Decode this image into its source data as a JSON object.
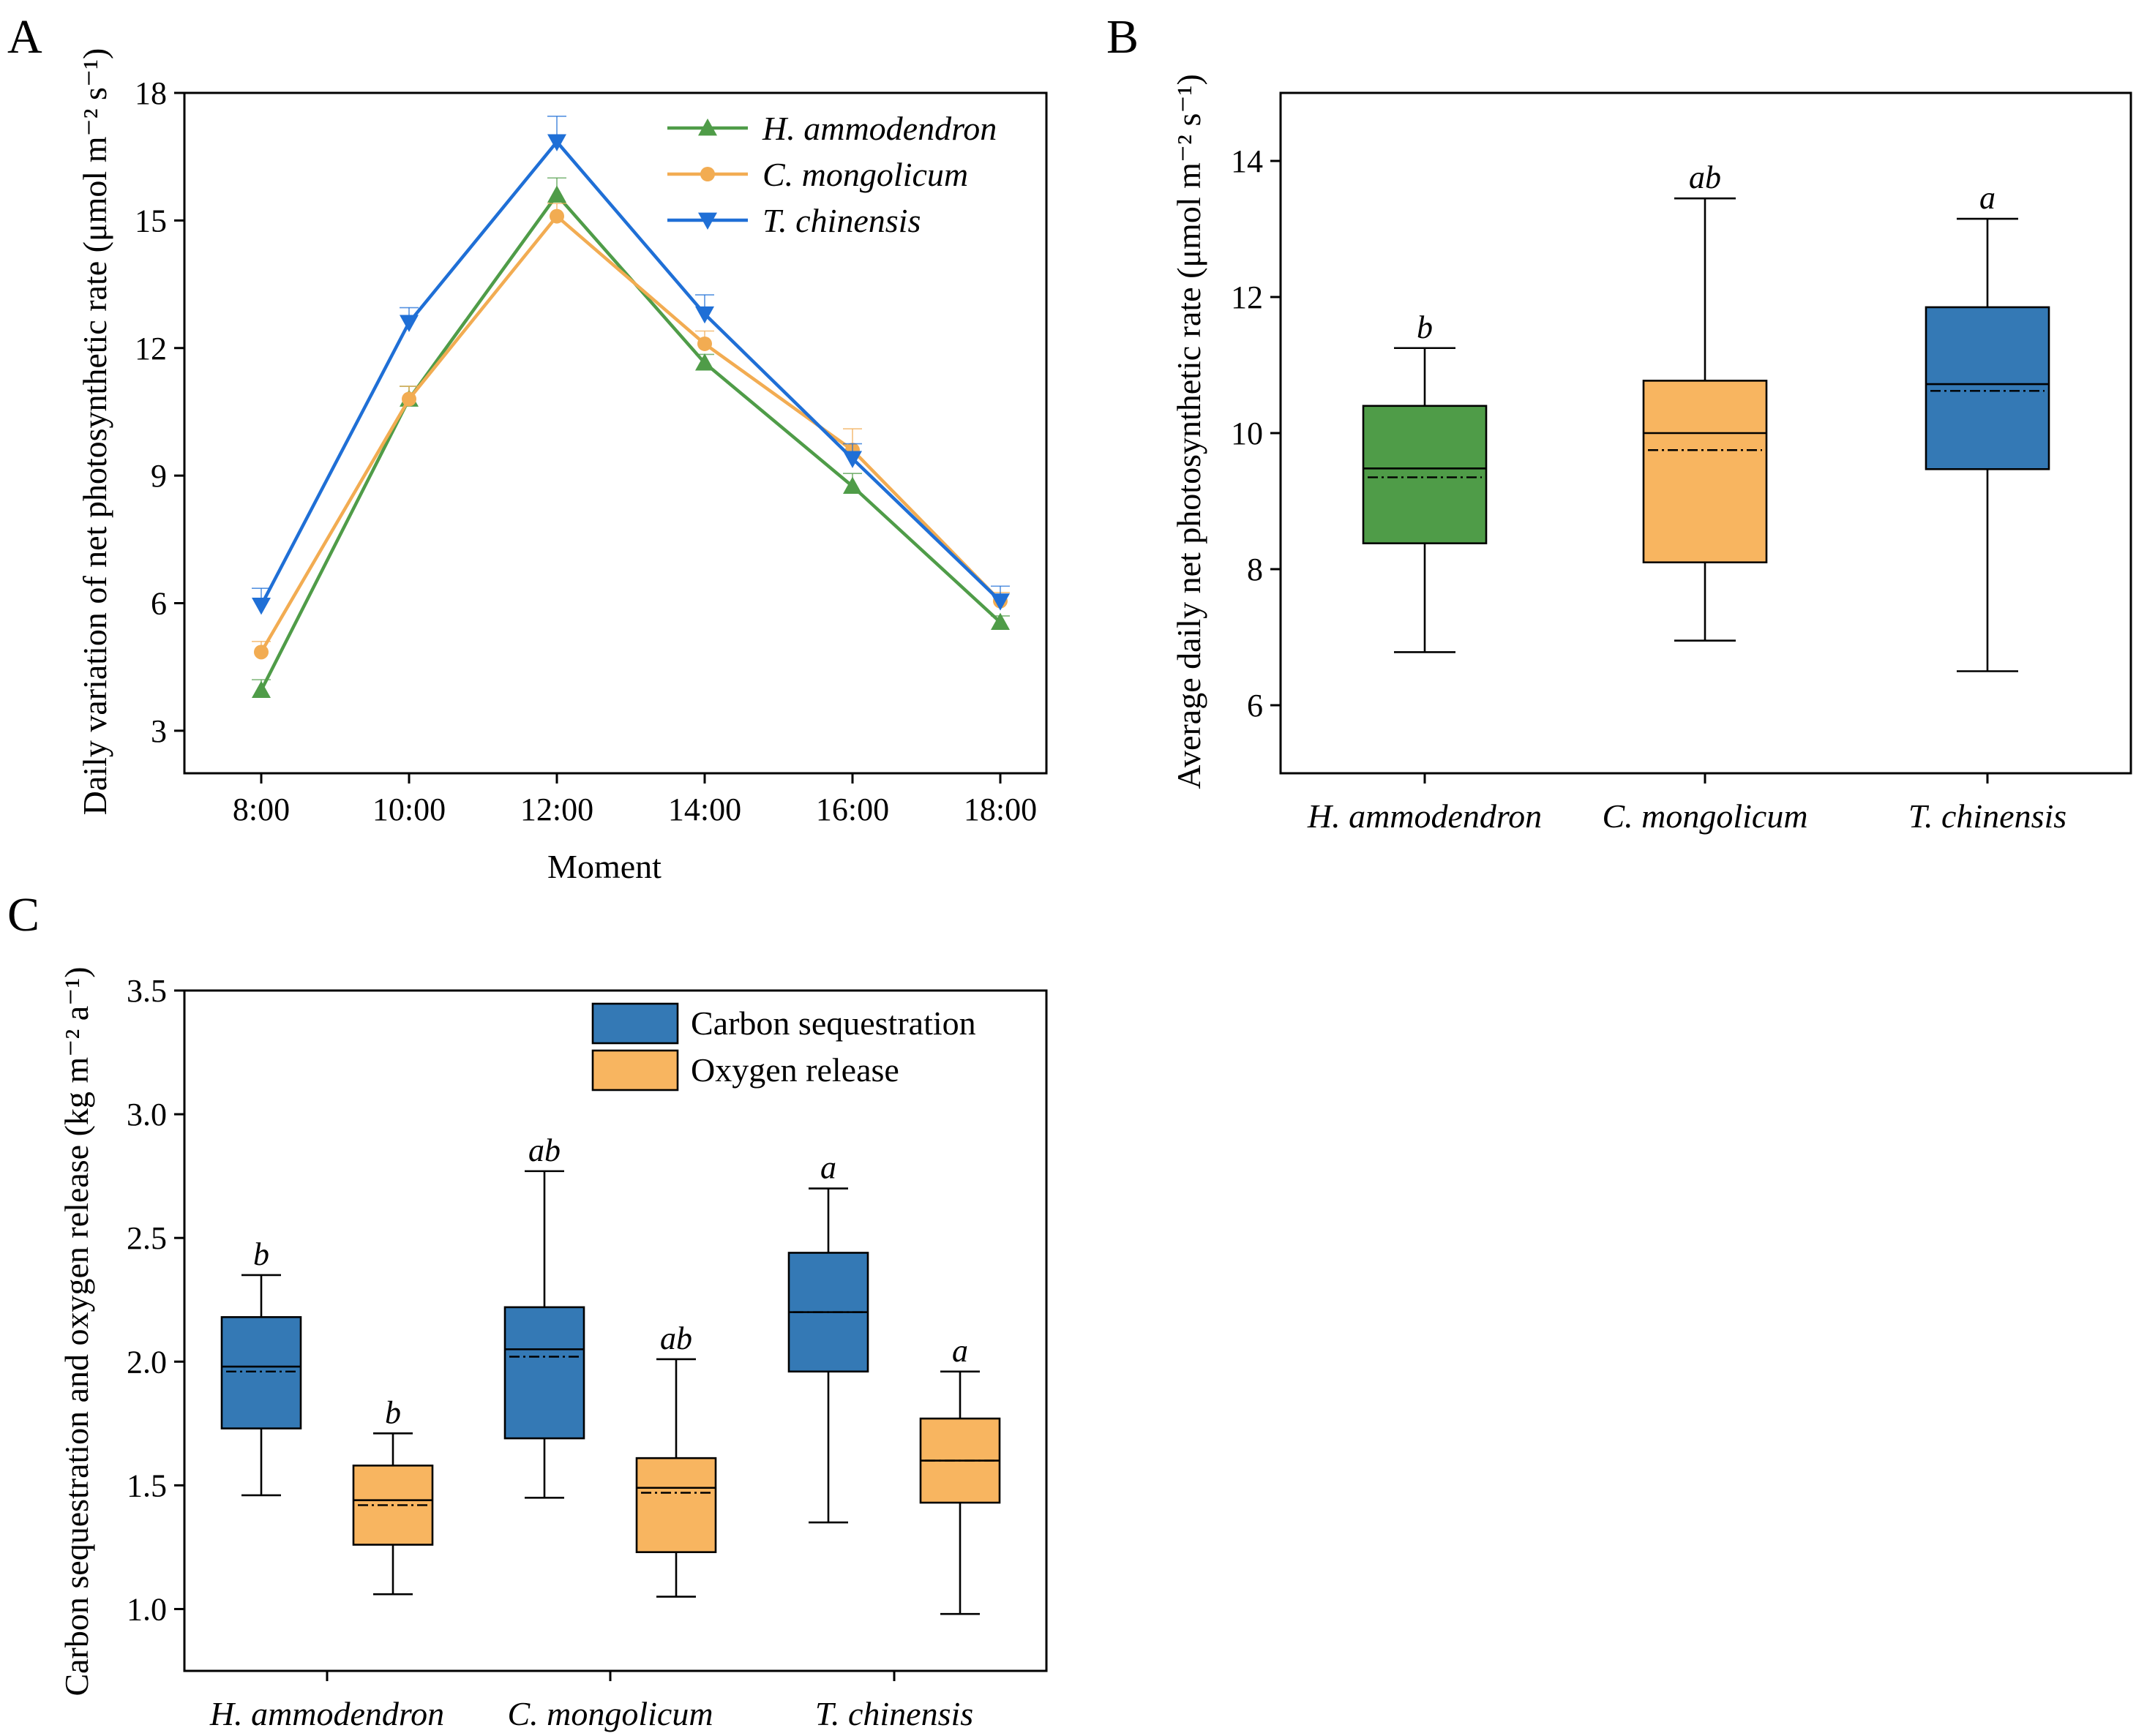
{
  "colors": {
    "green": "#4f9c48",
    "orange": "#f8b560",
    "blue": "#3479b5",
    "line_green": "#4f9c48",
    "line_orange": "#f2ac52",
    "line_blue": "#1f6fd6"
  },
  "panel_labels": {
    "a": "A",
    "b": "B",
    "c": "C"
  },
  "chart_data": [
    {
      "id": "A",
      "type": "line",
      "xlabel": "Moment",
      "ylabel": "Daily variation of net photosynthetic rate (μmol m⁻² s⁻¹)",
      "ylim": [
        2,
        18
      ],
      "yticks": [
        3,
        6,
        9,
        12,
        15,
        18
      ],
      "categories": [
        "8:00",
        "10:00",
        "12:00",
        "14:00",
        "16:00",
        "18:00"
      ],
      "series": [
        {
          "name": "H. ammodendron",
          "color": "#4f9c48",
          "marker": "triangle-up",
          "values": [
            3.95,
            10.8,
            15.6,
            11.65,
            8.75,
            5.55
          ],
          "errors": [
            0.25,
            0.3,
            0.4,
            0.2,
            0.3,
            0.15
          ]
        },
        {
          "name": "C. mongolicum",
          "color": "#f2ac52",
          "marker": "circle",
          "values": [
            4.85,
            10.8,
            15.1,
            12.1,
            9.6,
            6.05
          ],
          "errors": [
            0.25,
            0.3,
            0.3,
            0.3,
            0.5,
            0.2
          ]
        },
        {
          "name": "T. chinensis",
          "color": "#1f6fd6",
          "marker": "triangle-down",
          "values": [
            5.95,
            12.6,
            16.85,
            12.8,
            9.4,
            6.05
          ],
          "errors": [
            0.4,
            0.35,
            0.6,
            0.45,
            0.35,
            0.35
          ]
        }
      ],
      "legend": "top-right"
    },
    {
      "id": "B",
      "type": "box",
      "ylabel": "Average daily net photosynthetic rate (μmol m⁻² s⁻¹)",
      "ylim": [
        5,
        15
      ],
      "yticks": [
        6,
        8,
        10,
        12,
        14
      ],
      "categories": [
        "H. ammodendron",
        "C. mongolicum",
        "T. chinensis"
      ],
      "boxes": [
        {
          "whisker_low": 6.78,
          "q1": 8.38,
          "median": 9.48,
          "mean": 9.35,
          "q3": 10.4,
          "whisker_high": 11.25,
          "letter": "b",
          "color": "#4f9c48"
        },
        {
          "whisker_low": 6.95,
          "q1": 8.1,
          "median": 10.0,
          "mean": 9.75,
          "q3": 10.77,
          "whisker_high": 13.45,
          "letter": "ab",
          "color": "#f8b560"
        },
        {
          "whisker_low": 6.5,
          "q1": 9.47,
          "median": 10.72,
          "mean": 10.62,
          "q3": 11.85,
          "whisker_high": 13.15,
          "letter": "a",
          "color": "#3479b5"
        }
      ]
    },
    {
      "id": "C",
      "type": "box",
      "ylabel": "Carbon sequestration and oxygen release (kg m⁻² a⁻¹)",
      "ylim": [
        0.75,
        3.5
      ],
      "yticks": [
        1.0,
        1.5,
        2.0,
        2.5,
        3.0,
        3.5
      ],
      "categories": [
        "H. ammodendron",
        "C. mongolicum",
        "T. chinensis"
      ],
      "series": [
        {
          "name": "Carbon sequestration",
          "color": "#3479b5",
          "boxes": [
            {
              "whisker_low": 1.46,
              "q1": 1.73,
              "median": 1.98,
              "mean": 1.96,
              "q3": 2.18,
              "whisker_high": 2.35,
              "letter": "b"
            },
            {
              "whisker_low": 1.45,
              "q1": 1.69,
              "median": 2.05,
              "mean": 2.02,
              "q3": 2.22,
              "whisker_high": 2.77,
              "letter": "ab"
            },
            {
              "whisker_low": 1.35,
              "q1": 1.96,
              "median": 2.2,
              "mean": 2.2,
              "q3": 2.44,
              "whisker_high": 2.7,
              "letter": "a"
            }
          ]
        },
        {
          "name": "Oxygen release",
          "color": "#f8b560",
          "boxes": [
            {
              "whisker_low": 1.06,
              "q1": 1.26,
              "median": 1.44,
              "mean": 1.42,
              "q3": 1.58,
              "whisker_high": 1.71,
              "letter": "b"
            },
            {
              "whisker_low": 1.05,
              "q1": 1.23,
              "median": 1.49,
              "mean": 1.47,
              "q3": 1.61,
              "whisker_high": 2.01,
              "letter": "ab"
            },
            {
              "whisker_low": 0.98,
              "q1": 1.43,
              "median": 1.6,
              "mean": 1.6,
              "q3": 1.77,
              "whisker_high": 1.96,
              "letter": "a"
            }
          ]
        }
      ],
      "legend": "top-right"
    }
  ]
}
